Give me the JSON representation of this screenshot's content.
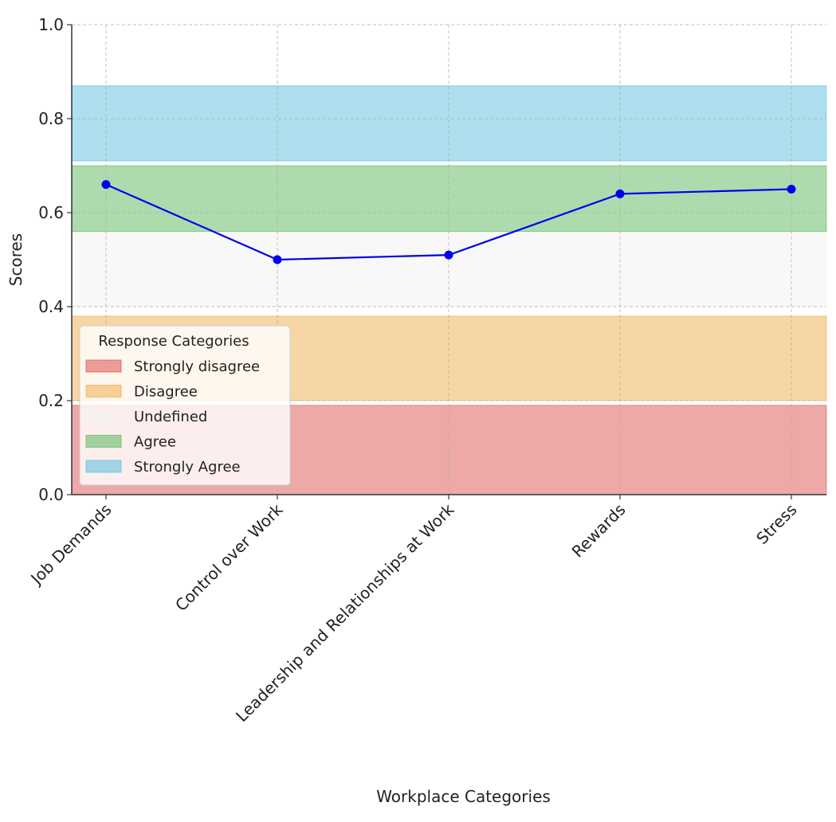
{
  "chart_data": {
    "type": "line",
    "title": "",
    "xlabel": "Workplace Categories",
    "ylabel": "Scores",
    "ylim": [
      0,
      1.0
    ],
    "yticks": [
      0.0,
      0.2,
      0.4,
      0.6,
      0.8,
      1.0
    ],
    "ytick_labels": [
      "0.0",
      "0.2",
      "0.4",
      "0.6",
      "0.8",
      "1.0"
    ],
    "categories": [
      "Job Demands",
      "Control over Work",
      "Leadership and Relationships at Work",
      "Rewards",
      "Stress"
    ],
    "series": [
      {
        "values": [
          0.66,
          0.5,
          0.51,
          0.64,
          0.65
        ],
        "color": "#0000ee",
        "marker": "circle"
      }
    ],
    "bands": [
      {
        "name": "Strongly disagree",
        "from": 0.0,
        "to": 0.19,
        "color": "#d9534f"
      },
      {
        "name": "Disagree",
        "from": 0.2,
        "to": 0.38,
        "color": "#f0ad4e"
      },
      {
        "name": "Undefined",
        "from": 0.4,
        "to": 0.56,
        "color": "#f2f2f2"
      },
      {
        "name": "Agree",
        "from": 0.56,
        "to": 0.7,
        "color": "#5cb85c"
      },
      {
        "name": "Strongly Agree",
        "from": 0.71,
        "to": 0.87,
        "color": "#5bc0de"
      }
    ],
    "grid": true,
    "legend": {
      "title": "Response Categories",
      "placement": "bottom-left",
      "entries": [
        "Strongly disagree",
        "Disagree",
        "Undefined",
        "Agree",
        "Strongly Agree"
      ]
    }
  }
}
